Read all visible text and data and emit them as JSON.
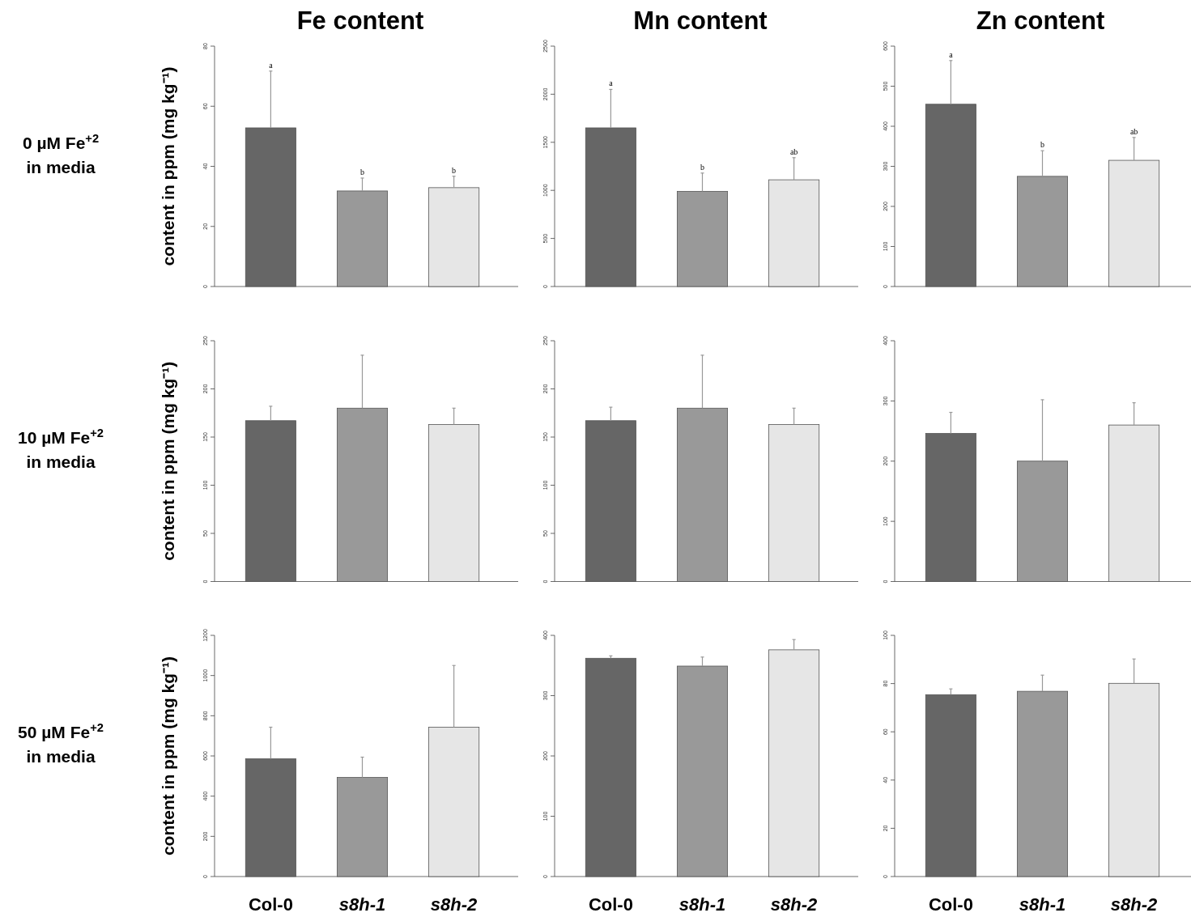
{
  "chart_data": [
    {
      "type": "bar",
      "title": "Fe content",
      "ylabel": "content in ppm (mg kg⁻¹)",
      "categories": [
        null,
        null,
        null
      ],
      "values": [
        52.8,
        31.8,
        32.9
      ],
      "colors": [
        "#666666",
        "#999999",
        "#e6e6e6"
      ],
      "errors": [
        [
          52.8,
          71.7
        ],
        [
          31.8,
          36.1
        ],
        [
          32.9,
          36.7
        ]
      ],
      "ylim": [
        0,
        80
      ],
      "yticks": [
        0,
        20,
        40,
        60,
        80
      ],
      "tick_labels": "y",
      "annotations": [
        "0 µM Fe$^{+2}$",
        "in media",
        "a",
        "b",
        "b"
      ]
    },
    {
      "type": "bar",
      "title": "Mn content",
      "categories": [
        null,
        null,
        null
      ],
      "values": [
        1650,
        990,
        1110
      ],
      "colors": [
        "#666666",
        "#999999",
        "#e6e6e6"
      ],
      "errors": [
        [
          1650,
          2050
        ],
        [
          990,
          1180
        ],
        [
          1110,
          1340
        ]
      ],
      "ylim": [
        0,
        2500
      ],
      "yticks": [
        0,
        500,
        1000,
        1500,
        2000,
        2500
      ],
      "tick_labels": "y",
      "annotations": [
        "a",
        "b",
        "ab"
      ]
    },
    {
      "type": "bar",
      "title": "Zn content",
      "categories": [
        null,
        null,
        null
      ],
      "values": [
        455,
        275,
        315
      ],
      "colors": [
        "#666666",
        "#999999",
        "#e6e6e6"
      ],
      "errors": [
        [
          455,
          564
        ],
        [
          275,
          339
        ],
        [
          315,
          372
        ]
      ],
      "ylim": [
        0,
        600
      ],
      "yticks": [
        0,
        100,
        200,
        300,
        400,
        500,
        600
      ],
      "tick_labels": "y",
      "annotations": [
        "a",
        "b",
        "ab"
      ]
    },
    {
      "type": "bar",
      "ylabel": "content in ppm (mg kg⁻¹)",
      "categories": [
        null,
        null,
        null
      ],
      "values": [
        167,
        180,
        163
      ],
      "colors": [
        "#666666",
        "#999999",
        "#e6e6e6"
      ],
      "errors": [
        [
          167,
          182
        ],
        [
          180,
          235
        ],
        [
          163,
          180
        ]
      ],
      "ylim": [
        0,
        250
      ],
      "yticks": [
        0,
        50,
        100,
        150,
        200,
        250
      ],
      "tick_labels": "y",
      "annotations": [
        "10 µM Fe$^{+2}$",
        "in media"
      ]
    },
    {
      "type": "bar",
      "categories": [
        null,
        null,
        null
      ],
      "values": [
        167,
        180,
        163
      ],
      "colors": [
        "#666666",
        "#999999",
        "#e6e6e6"
      ],
      "errors": [
        [
          167,
          181
        ],
        [
          180,
          235
        ],
        [
          163,
          180
        ]
      ],
      "ylim": [
        0,
        250
      ],
      "yticks": [
        0,
        50,
        100,
        150,
        200,
        250
      ],
      "tick_labels": "y"
    },
    {
      "type": "bar",
      "categories": [
        null,
        null,
        null
      ],
      "values": [
        246,
        200,
        260
      ],
      "colors": [
        "#666666",
        "#999999",
        "#e6e6e6"
      ],
      "errors": [
        [
          246,
          281
        ],
        [
          200,
          302
        ],
        [
          260,
          297
        ]
      ],
      "ylim": [
        0,
        400
      ],
      "yticks": [
        0,
        100,
        200,
        300,
        400
      ],
      "tick_labels": "y"
    },
    {
      "type": "bar",
      "ylabel": "content in ppm (mg kg⁻¹)",
      "categories": [
        "Col-0",
        "s8h-1",
        "s8h-2"
      ],
      "values": [
        586,
        493,
        743
      ],
      "colors": [
        "#666666",
        "#999999",
        "#e6e6e6"
      ],
      "errors": [
        [
          586,
          743
        ],
        [
          493,
          594
        ],
        [
          743,
          1050
        ]
      ],
      "ylim": [
        0,
        1200
      ],
      "yticks": [
        0,
        200,
        400,
        600,
        800,
        1000,
        1200
      ],
      "annotations": [
        "50 µM Fe$^{+2}$",
        "in media"
      ]
    },
    {
      "type": "bar",
      "categories": [
        "Col-0",
        "s8h-1",
        "s8h-2"
      ],
      "values": [
        362,
        349,
        376
      ],
      "colors": [
        "#666666",
        "#999999",
        "#e6e6e6"
      ],
      "errors": [
        [
          362,
          366
        ],
        [
          349,
          364
        ],
        [
          376,
          393
        ]
      ],
      "ylim": [
        0,
        400
      ],
      "yticks": [
        0,
        100,
        200,
        300,
        400
      ]
    },
    {
      "type": "bar",
      "categories": [
        "Col-0",
        "s8h-1",
        "s8h-2"
      ],
      "values": [
        75.4,
        76.8,
        80.1
      ],
      "colors": [
        "#666666",
        "#999999",
        "#e6e6e6"
      ],
      "errors": [
        [
          75.4,
          77.8
        ],
        [
          76.8,
          83.5
        ],
        [
          80.1,
          90.2
        ]
      ],
      "ylim": [
        0,
        100
      ],
      "yticks": [
        0,
        20,
        40,
        60,
        80,
        100
      ]
    }
  ]
}
